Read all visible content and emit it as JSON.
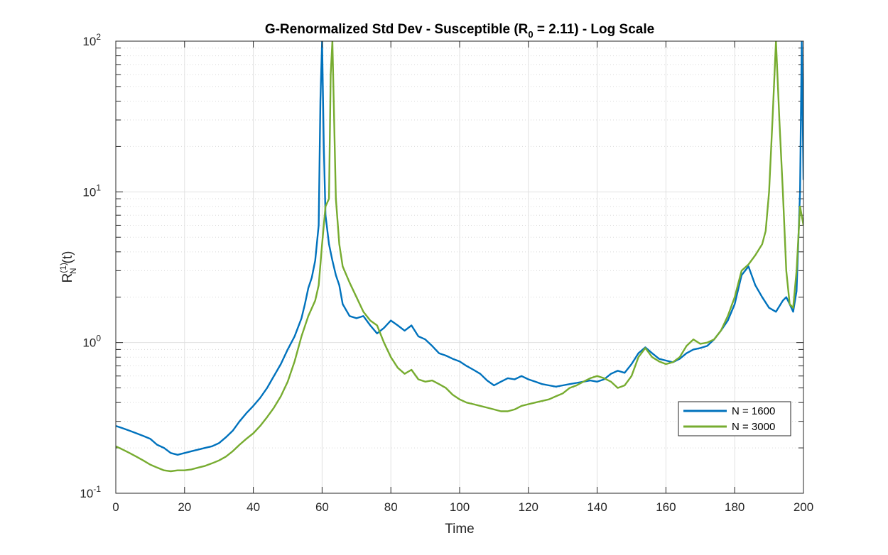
{
  "chart_data": {
    "type": "line",
    "title": "G-Renormalized Std Dev - Susceptible (R",
    "title_sub": "0",
    "title_suffix": " = 2.11) - Log Scale",
    "xlabel": "Time",
    "ylabel_main": "R",
    "ylabel_sup": "(1)",
    "ylabel_sub": "N",
    "ylabel_suffix": "(t)",
    "xlim": [
      0,
      200
    ],
    "ylim": [
      0.1,
      100
    ],
    "yscale": "log",
    "grid": true,
    "minor_grid": true,
    "legend_position": "lower-right",
    "x_ticks": [
      0,
      20,
      40,
      60,
      80,
      100,
      120,
      140,
      160,
      180,
      200
    ],
    "y_ticks": [
      {
        "value": 0.1,
        "base": "10",
        "exp": "-1"
      },
      {
        "value": 1,
        "base": "10",
        "exp": "0"
      },
      {
        "value": 10,
        "base": "10",
        "exp": "1"
      },
      {
        "value": 100,
        "base": "10",
        "exp": "2"
      }
    ],
    "series": [
      {
        "name": "N = 1600",
        "color": "#0072BD",
        "x": [
          0,
          2,
          4,
          6,
          8,
          10,
          12,
          14,
          16,
          18,
          20,
          22,
          24,
          26,
          28,
          30,
          32,
          34,
          36,
          38,
          40,
          42,
          44,
          46,
          48,
          50,
          52,
          54,
          55,
          56,
          57,
          58,
          59,
          59.5,
          60,
          60.5,
          61,
          62,
          63,
          64,
          65,
          66,
          68,
          70,
          72,
          74,
          76,
          78,
          80,
          82,
          84,
          86,
          88,
          90,
          92,
          94,
          96,
          98,
          100,
          102,
          104,
          106,
          108,
          110,
          112,
          114,
          116,
          118,
          120,
          122,
          124,
          126,
          128,
          130,
          132,
          134,
          136,
          138,
          140,
          142,
          144,
          146,
          148,
          150,
          152,
          154,
          156,
          158,
          160,
          162,
          164,
          166,
          168,
          170,
          172,
          174,
          176,
          178,
          180,
          182,
          184,
          186,
          188,
          190,
          192,
          194,
          195,
          196,
          197,
          198,
          199,
          199.5,
          200
        ],
        "y": [
          0.28,
          0.27,
          0.26,
          0.25,
          0.24,
          0.23,
          0.21,
          0.2,
          0.185,
          0.18,
          0.185,
          0.19,
          0.195,
          0.2,
          0.205,
          0.215,
          0.235,
          0.26,
          0.3,
          0.34,
          0.38,
          0.43,
          0.5,
          0.6,
          0.72,
          0.9,
          1.1,
          1.45,
          1.8,
          2.3,
          2.7,
          3.5,
          6,
          40,
          100,
          20,
          7,
          4.5,
          3.5,
          2.8,
          2.4,
          1.8,
          1.5,
          1.45,
          1.5,
          1.3,
          1.15,
          1.25,
          1.4,
          1.3,
          1.2,
          1.3,
          1.1,
          1.05,
          0.95,
          0.85,
          0.82,
          0.78,
          0.75,
          0.7,
          0.66,
          0.62,
          0.56,
          0.52,
          0.55,
          0.58,
          0.57,
          0.6,
          0.57,
          0.55,
          0.53,
          0.52,
          0.51,
          0.52,
          0.53,
          0.54,
          0.55,
          0.56,
          0.55,
          0.57,
          0.62,
          0.65,
          0.63,
          0.72,
          0.85,
          0.93,
          0.85,
          0.78,
          0.76,
          0.74,
          0.78,
          0.85,
          0.9,
          0.92,
          0.95,
          1.05,
          1.2,
          1.4,
          1.8,
          2.8,
          3.2,
          2.4,
          2.0,
          1.7,
          1.6,
          1.9,
          2.0,
          1.8,
          1.6,
          2.2,
          10,
          100,
          12
        ]
      },
      {
        "name": "N = 3000",
        "color": "#77AC30",
        "x": [
          0,
          2,
          4,
          6,
          8,
          10,
          12,
          14,
          16,
          18,
          20,
          22,
          24,
          26,
          28,
          30,
          32,
          34,
          36,
          38,
          40,
          42,
          44,
          46,
          48,
          50,
          52,
          54,
          56,
          58,
          59,
          60,
          60.5,
          61,
          62,
          62.5,
          63,
          64,
          65,
          66,
          68,
          70,
          72,
          74,
          76,
          78,
          80,
          82,
          84,
          86,
          88,
          90,
          92,
          94,
          96,
          98,
          100,
          102,
          104,
          106,
          108,
          110,
          112,
          114,
          116,
          118,
          120,
          122,
          124,
          126,
          128,
          130,
          132,
          134,
          136,
          138,
          140,
          142,
          144,
          146,
          148,
          150,
          152,
          154,
          156,
          158,
          160,
          162,
          164,
          166,
          168,
          170,
          172,
          174,
          176,
          178,
          180,
          182,
          184,
          186,
          188,
          189,
          190,
          191,
          192,
          193,
          194,
          195,
          196,
          197,
          198,
          199,
          200
        ],
        "y": [
          0.205,
          0.195,
          0.185,
          0.175,
          0.165,
          0.155,
          0.148,
          0.142,
          0.14,
          0.142,
          0.142,
          0.144,
          0.148,
          0.152,
          0.158,
          0.165,
          0.175,
          0.19,
          0.21,
          0.23,
          0.25,
          0.28,
          0.32,
          0.37,
          0.44,
          0.55,
          0.75,
          1.1,
          1.5,
          1.9,
          2.4,
          4.5,
          6,
          8,
          9,
          60,
          100,
          9,
          4.5,
          3.2,
          2.5,
          2.0,
          1.6,
          1.4,
          1.3,
          1.0,
          0.8,
          0.68,
          0.62,
          0.66,
          0.57,
          0.55,
          0.56,
          0.53,
          0.5,
          0.45,
          0.42,
          0.4,
          0.39,
          0.38,
          0.37,
          0.36,
          0.35,
          0.35,
          0.36,
          0.38,
          0.39,
          0.4,
          0.41,
          0.42,
          0.44,
          0.46,
          0.5,
          0.52,
          0.55,
          0.58,
          0.6,
          0.58,
          0.55,
          0.5,
          0.52,
          0.6,
          0.8,
          0.92,
          0.8,
          0.75,
          0.72,
          0.74,
          0.8,
          0.95,
          1.05,
          0.98,
          1.0,
          1.05,
          1.2,
          1.5,
          2.0,
          3.0,
          3.3,
          3.8,
          4.5,
          5.5,
          10,
          30,
          100,
          30,
          10,
          3,
          1.8,
          1.7,
          3,
          8,
          6
        ]
      }
    ]
  }
}
